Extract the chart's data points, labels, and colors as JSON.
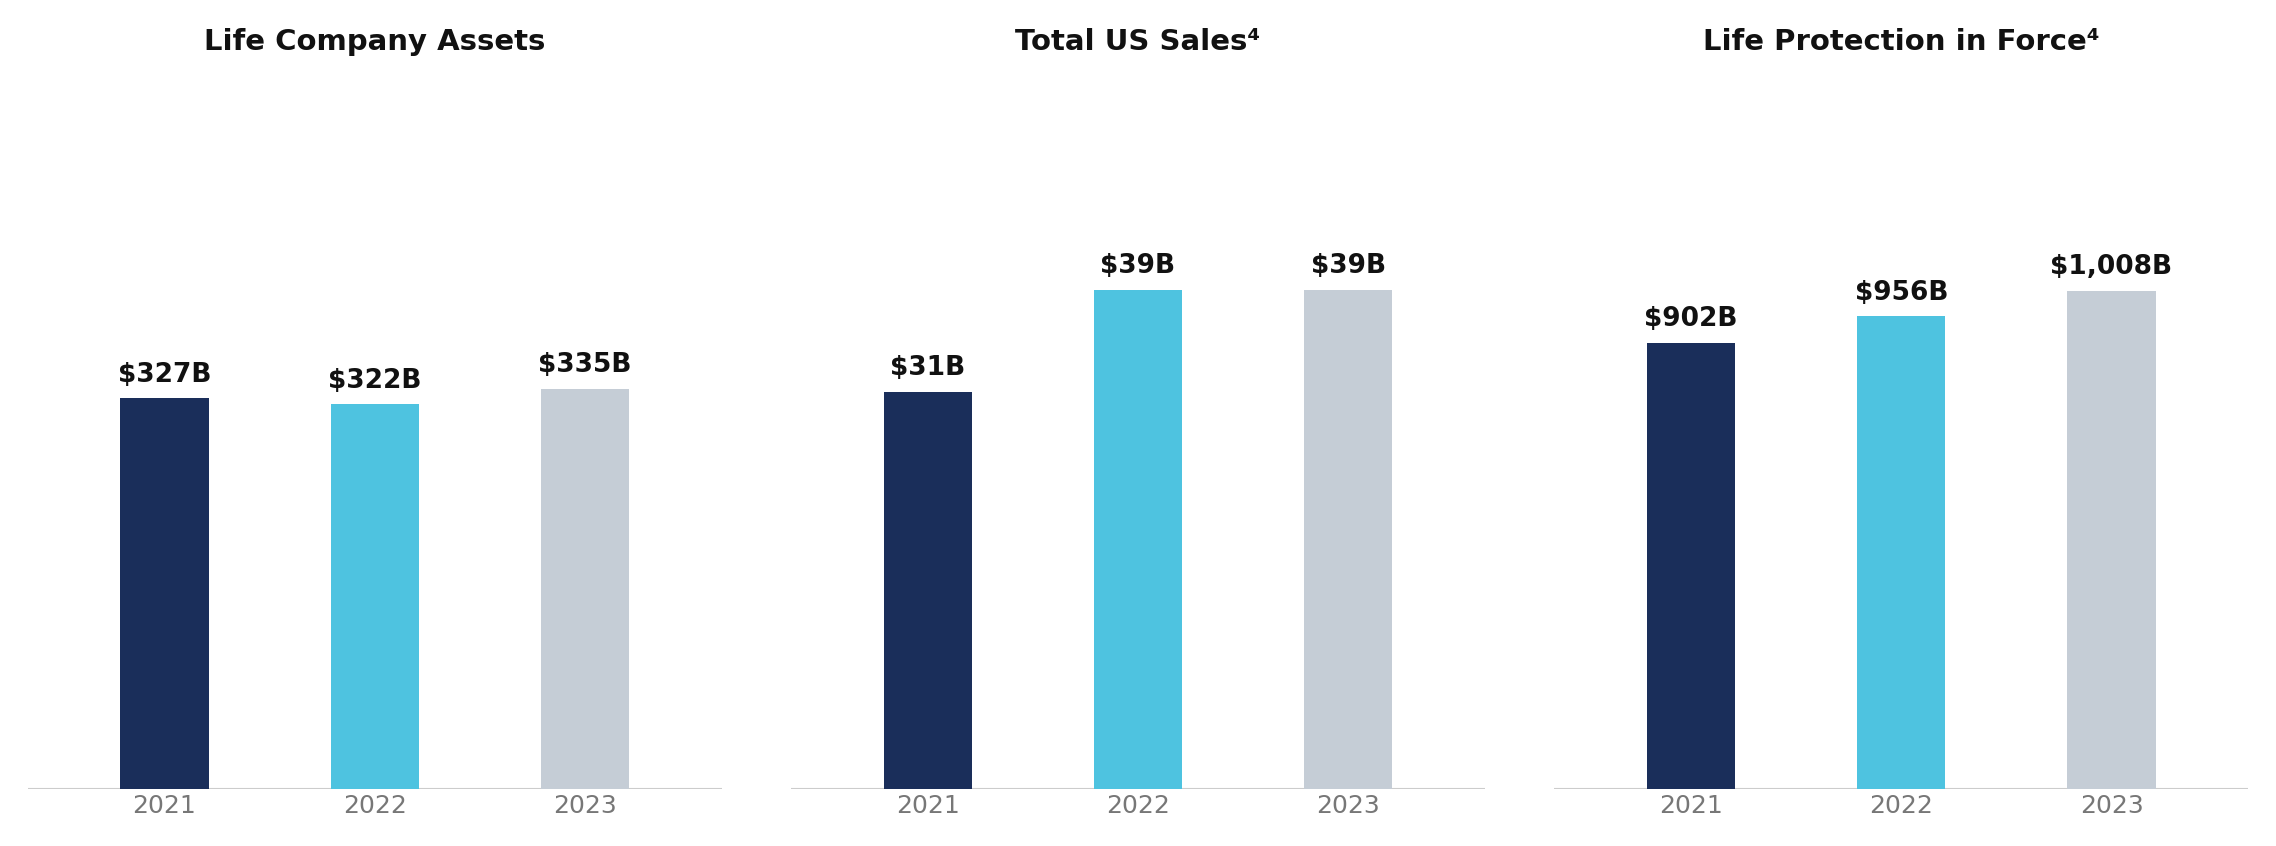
{
  "charts": [
    {
      "title": "Life Company Assets",
      "years": [
        "2021",
        "2022",
        "2023"
      ],
      "values": [
        327,
        322,
        335
      ],
      "labels": [
        "$327B",
        "$322B",
        "$335B"
      ],
      "colors": [
        "#1a2e5a",
        "#4ec3e0",
        "#c5cdd6"
      ],
      "ylim": [
        0,
        600
      ]
    },
    {
      "title": "Total US Sales⁴",
      "years": [
        "2021",
        "2022",
        "2023"
      ],
      "values": [
        31,
        39,
        39
      ],
      "labels": [
        "$31B",
        "$39B",
        "$39B"
      ],
      "colors": [
        "#1a2e5a",
        "#4ec3e0",
        "#c5cdd6"
      ],
      "ylim": [
        0,
        56
      ]
    },
    {
      "title": "Life Protection in Force⁴",
      "years": [
        "2021",
        "2022",
        "2023"
      ],
      "values": [
        902,
        956,
        1008
      ],
      "labels": [
        "$902B",
        "$956B",
        "$1,008B"
      ],
      "colors": [
        "#1a2e5a",
        "#4ec3e0",
        "#c5cdd6"
      ],
      "ylim": [
        0,
        1450
      ]
    }
  ],
  "background_color": "#ffffff",
  "title_fontsize": 21,
  "label_fontsize": 19,
  "tick_fontsize": 18,
  "bar_width": 0.42,
  "label_fontweight": "bold",
  "tick_color": "#777777",
  "baseline_color": "#cccccc",
  "baseline_lw": 1.5
}
